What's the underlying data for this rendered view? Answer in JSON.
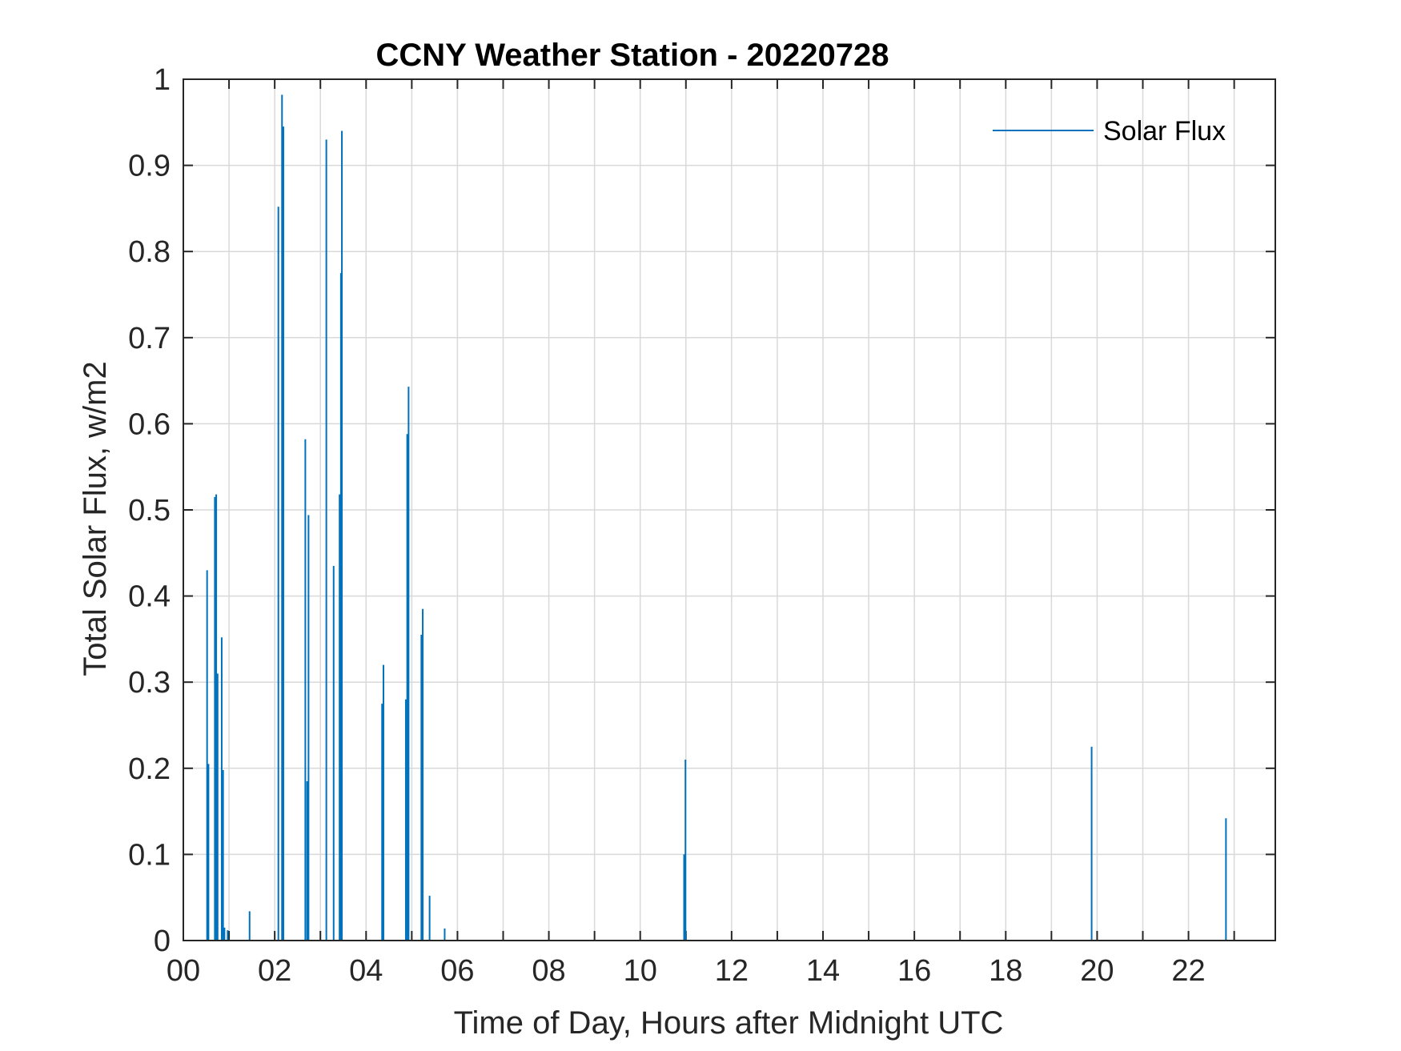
{
  "chart_data": {
    "type": "line",
    "title": "CCNY Weather Station - 20220728",
    "xlabel": "Time of Day, Hours after Midnight UTC",
    "ylabel": "Total Solar Flux, w/m2",
    "xlim": [
      0,
      23.9
    ],
    "ylim": [
      0,
      1
    ],
    "xticks": [
      0,
      2,
      4,
      6,
      8,
      10,
      12,
      14,
      16,
      18,
      20,
      22
    ],
    "xtick_labels": [
      "00",
      "02",
      "04",
      "06",
      "08",
      "10",
      "12",
      "14",
      "16",
      "18",
      "20",
      "22"
    ],
    "xgrid_step": 1,
    "yticks": [
      0,
      0.1,
      0.2,
      0.3,
      0.4,
      0.5,
      0.6,
      0.7,
      0.8,
      0.9,
      1
    ],
    "ytick_labels": [
      "0",
      "0.1",
      "0.2",
      "0.3",
      "0.4",
      "0.5",
      "0.6",
      "0.7",
      "0.8",
      "0.9",
      "1"
    ],
    "grid": true,
    "legend": {
      "position": "top-right",
      "entries": [
        "Solar Flux"
      ]
    },
    "series": [
      {
        "name": "Solar Flux",
        "color": "#0072BD",
        "x": [
          0.52,
          0.55,
          0.69,
          0.72,
          0.75,
          0.84,
          0.87,
          0.9,
          0.97,
          1.45,
          2.08,
          2.16,
          2.19,
          2.67,
          2.71,
          2.74,
          3.13,
          3.29,
          3.42,
          3.45,
          3.47,
          4.35,
          4.38,
          4.87,
          4.9,
          4.93,
          5.21,
          5.24,
          5.39,
          5.72,
          10.96,
          10.99,
          19.88,
          22.82
        ],
        "values": [
          0.43,
          0.205,
          0.515,
          0.518,
          0.31,
          0.352,
          0.198,
          0.015,
          0.012,
          0.034,
          0.852,
          0.982,
          0.945,
          0.582,
          0.185,
          0.494,
          0.93,
          0.435,
          0.518,
          0.775,
          0.94,
          0.275,
          0.32,
          0.28,
          0.588,
          0.643,
          0.355,
          0.385,
          0.052,
          0.014,
          0.1,
          0.21,
          0.225,
          0.142
        ]
      }
    ]
  }
}
